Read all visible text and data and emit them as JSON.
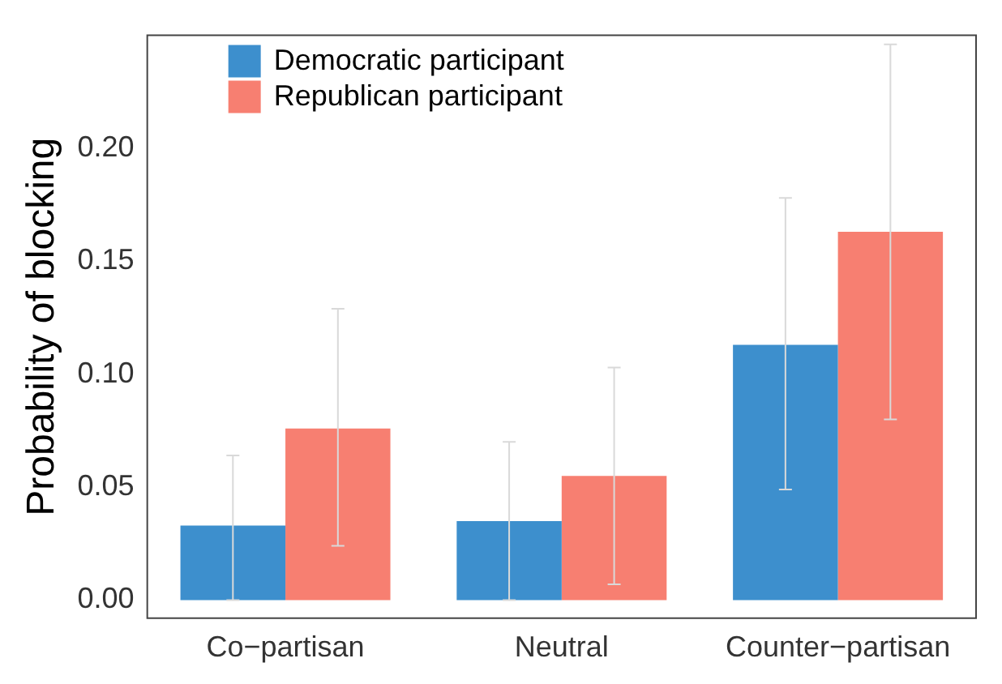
{
  "chart_data": {
    "type": "bar",
    "ylabel": "Probability of blocking",
    "categories": [
      "Co−partisan",
      "Neutral",
      "Counter−partisan"
    ],
    "series": [
      {
        "name": "Democratic participant",
        "color": "#3d8fcd",
        "values": [
          0.033,
          0.035,
          0.113
        ],
        "errors": [
          [
            0.0,
            0.064
          ],
          [
            0.0,
            0.07
          ],
          [
            0.049,
            0.178
          ]
        ]
      },
      {
        "name": "Republican participant",
        "color": "#f77f71",
        "values": [
          0.076,
          0.055,
          0.163
        ],
        "errors": [
          [
            0.024,
            0.129
          ],
          [
            0.007,
            0.103
          ],
          [
            0.08,
            0.246
          ]
        ]
      }
    ],
    "ylim": [
      -0.008,
      0.25
    ],
    "yticks": [
      {
        "value": 0,
        "label": "0.00"
      },
      {
        "value": 0.05,
        "label": "0.05"
      },
      {
        "value": 0.1,
        "label": "0.10"
      },
      {
        "value": 0.15,
        "label": "0.15"
      },
      {
        "value": 0.2,
        "label": "0.20"
      }
    ],
    "grid": false,
    "legend": "top left"
  }
}
